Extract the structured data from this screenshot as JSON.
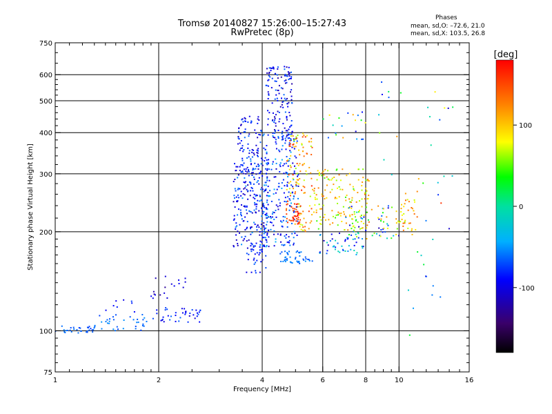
{
  "header": {
    "title_line1": "Tromsø 20140827 15:26:00–15:27:43",
    "title_line2": "RwPretec (8p)",
    "stats_title": "Phases",
    "stats_line1": "mean, sd,O: –72.6, 21.0",
    "stats_line2": "mean, sd,X: 103.5, 26.8"
  },
  "chart_data": {
    "type": "scatter",
    "xlabel": "Frequency [MHz]",
    "ylabel": "Stationary phase Virtual Height [km]",
    "x_scale": "log",
    "y_scale": "log",
    "xlim": [
      1,
      16
    ],
    "ylim": [
      75,
      750
    ],
    "x_ticks": [
      1,
      2,
      4,
      6,
      8,
      10,
      16
    ],
    "x_tick_labels": [
      "1",
      "2",
      "4",
      "6",
      "8",
      "10",
      "16"
    ],
    "x_gridlines": [
      2,
      4,
      6,
      8,
      10
    ],
    "y_ticks": [
      75,
      100,
      200,
      300,
      400,
      500,
      600,
      750
    ],
    "y_tick_labels": [
      "75",
      "100",
      "200",
      "300",
      "400",
      "500",
      "600",
      "750"
    ],
    "y_gridlines": [
      100,
      200,
      300,
      400,
      500,
      600
    ],
    "grid": true,
    "colorbar": {
      "label": "[deg]",
      "range": [
        -180,
        180
      ],
      "ticks": [
        100,
        0,
        -100
      ],
      "tick_labels": [
        "100",
        "0",
        "-100"
      ]
    },
    "series": [
      {
        "clusters": [
          {
            "x": [
              1.0,
              1.3
            ],
            "y": [
              98,
              104
            ],
            "n": 30,
            "phase": [
              -75,
              -55
            ]
          },
          {
            "x": [
              1.3,
              1.95
            ],
            "y": [
              100,
              112
            ],
            "n": 35,
            "phase": [
              -75,
              -50
            ]
          },
          {
            "x": [
              1.9,
              2.65
            ],
            "y": [
              106,
              118
            ],
            "n": 40,
            "phase": [
              -110,
              -60
            ]
          },
          {
            "x": [
              1.9,
              2.4
            ],
            "y": [
              125,
              150
            ],
            "n": 18,
            "phase": [
              -130,
              -90
            ]
          },
          {
            "x": [
              1.4,
              1.8
            ],
            "y": [
              114,
              125
            ],
            "n": 8,
            "phase": [
              -100,
              -60
            ]
          },
          {
            "x": [
              3.3,
              4.2
            ],
            "y": [
              180,
              330
            ],
            "n": 230,
            "phase": [
              -120,
              -50
            ]
          },
          {
            "x": [
              3.4,
              4.0
            ],
            "y": [
              300,
              450
            ],
            "n": 90,
            "phase": [
              -115,
              -60
            ]
          },
          {
            "x": [
              3.6,
              4.1
            ],
            "y": [
              150,
              185
            ],
            "n": 40,
            "phase": [
              -110,
              -60
            ]
          },
          {
            "x": [
              4.0,
              5.1
            ],
            "y": [
              180,
              400
            ],
            "n": 230,
            "phase": [
              -110,
              -40
            ]
          },
          {
            "x": [
              4.1,
              4.9
            ],
            "y": [
              380,
              640
            ],
            "n": 140,
            "phase": [
              -125,
              -60
            ]
          },
          {
            "x": [
              4.7,
              5.6
            ],
            "y": [
              200,
              400
            ],
            "n": 120,
            "phase": [
              60,
              170
            ]
          },
          {
            "x": [
              4.7,
              5.2
            ],
            "y": [
              210,
              245
            ],
            "n": 40,
            "phase": [
              140,
              175
            ]
          },
          {
            "x": [
              4.5,
              5.6
            ],
            "y": [
              160,
              175
            ],
            "n": 45,
            "phase": [
              -70,
              -50
            ]
          },
          {
            "x": [
              5.6,
              8.2
            ],
            "y": [
              200,
              310
            ],
            "n": 160,
            "phase": [
              40,
              130
            ]
          },
          {
            "x": [
              5.8,
              8.0
            ],
            "y": [
              170,
              200
            ],
            "n": 45,
            "phase": [
              -110,
              0
            ]
          },
          {
            "x": [
              7.0,
              10.0
            ],
            "y": [
              190,
              240
            ],
            "n": 70,
            "phase": [
              -120,
              140
            ]
          },
          {
            "x": [
              6.0,
              8.0
            ],
            "y": [
              380,
              470
            ],
            "n": 20,
            "phase": [
              -110,
              120
            ]
          },
          {
            "x": [
              10.0,
              11.3
            ],
            "y": [
              200,
              270
            ],
            "n": 35,
            "phase": [
              60,
              140
            ]
          },
          {
            "x": [
              8.7,
              14.5
            ],
            "y": [
              280,
              580
            ],
            "n": 20,
            "phase": [
              -110,
              130
            ]
          },
          {
            "x": [
              10.6,
              14.5
            ],
            "y": [
              95,
              300
            ],
            "n": 20,
            "phase": [
              -110,
              160
            ]
          }
        ]
      }
    ]
  }
}
